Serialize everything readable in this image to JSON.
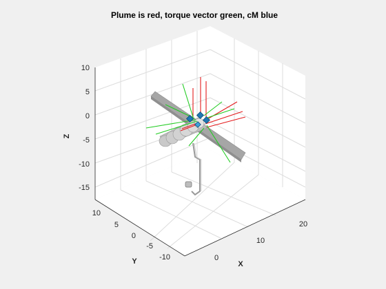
{
  "chart_data": {
    "type": "3d-plot",
    "title": "Plume is red, torque vector green, cM blue",
    "xlabel": "X",
    "ylabel": "Y",
    "zlabel": "Z",
    "xlim": [
      -5,
      25
    ],
    "ylim": [
      -15,
      15
    ],
    "zlim": [
      -15,
      10
    ],
    "x_ticks": [
      "0",
      "10",
      "20"
    ],
    "y_ticks": [
      "10",
      "5",
      "0",
      "-5",
      "-10"
    ],
    "z_ticks": [
      "10",
      "5",
      "0",
      "-5",
      "-10",
      "-15"
    ],
    "grid": true,
    "series": [
      {
        "name": "Plume",
        "color": "#e41a1c"
      },
      {
        "name": "torque vector",
        "color": "#22cc22"
      },
      {
        "name": "cM",
        "color": "#1f77b4"
      }
    ]
  }
}
